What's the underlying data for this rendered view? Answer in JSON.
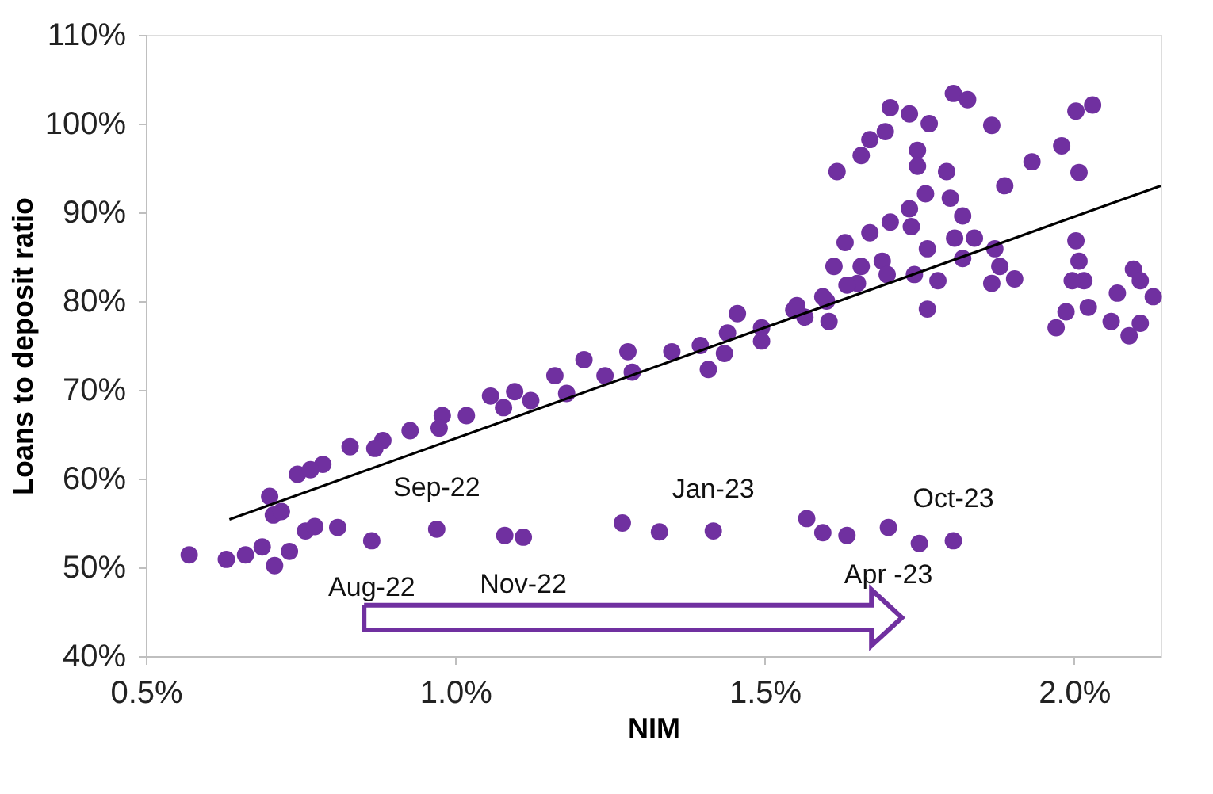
{
  "chart_data": {
    "type": "scatter",
    "xlabel": "NIM",
    "ylabel": "Loans to deposit ratio",
    "xlim": [
      0.5,
      2.14
    ],
    "ylim": [
      40,
      110
    ],
    "xticks": [
      {
        "value": 0.5,
        "label": "0.5%"
      },
      {
        "value": 1.0,
        "label": "1.0%"
      },
      {
        "value": 1.5,
        "label": "1.5%"
      },
      {
        "value": 2.0,
        "label": "2.0%"
      }
    ],
    "yticks": [
      {
        "value": 40,
        "label": "40%"
      },
      {
        "value": 50,
        "label": "50%"
      },
      {
        "value": 60,
        "label": "60%"
      },
      {
        "value": 70,
        "label": "70%"
      },
      {
        "value": 80,
        "label": "80%"
      },
      {
        "value": 90,
        "label": "90%"
      },
      {
        "value": 100,
        "label": "100%"
      },
      {
        "value": 110,
        "label": "110%"
      }
    ],
    "grid": false,
    "series": [
      {
        "marker": "circle",
        "color": "#7030a0",
        "x": [
          0.57,
          0.63,
          0.661,
          0.688,
          0.708,
          0.732,
          0.758,
          0.773,
          0.706,
          0.719,
          0.7,
          0.81,
          0.865,
          0.97,
          1.08,
          1.11,
          1.27,
          1.33,
          1.417,
          1.568,
          1.594,
          1.633,
          1.7,
          1.75,
          1.805,
          0.745,
          0.786,
          0.83,
          0.883,
          0.927,
          0.979,
          1.018,
          1.057,
          1.096,
          1.122,
          1.161,
          1.208,
          1.242,
          1.279,
          1.396,
          1.409,
          1.435,
          1.456,
          1.495,
          1.495,
          0.766,
          0.87,
          0.974,
          1.078,
          1.18,
          1.286,
          1.35,
          1.44,
          1.547,
          1.6,
          1.65,
          1.69,
          1.703,
          1.734,
          1.805,
          1.828,
          1.867,
          1.766,
          1.67,
          1.695,
          1.656,
          1.747,
          1.617,
          1.747,
          1.794,
          2.003,
          2.03,
          1.98,
          1.932,
          2.008,
          1.888,
          1.76,
          1.8,
          1.82,
          1.734,
          1.63,
          1.67,
          1.703,
          1.737,
          1.763,
          1.807,
          1.839,
          1.872,
          1.82,
          1.88,
          1.904,
          1.867,
          1.78,
          1.742,
          1.698,
          1.656,
          1.612,
          1.633,
          1.594,
          1.552,
          1.565,
          1.604,
          1.763,
          2.003,
          2.008,
          2.016,
          1.997,
          2.023,
          1.987,
          1.971,
          2.07,
          2.096,
          2.107,
          2.128,
          2.06,
          2.089,
          2.107
        ],
        "values": [
          51.4,
          50.9,
          51.4,
          52.3,
          50.2,
          51.8,
          54.1,
          54.6,
          55.9,
          56.3,
          58,
          54.5,
          53,
          54.3,
          53.6,
          53.4,
          55,
          54,
          54.1,
          55.5,
          53.9,
          53.6,
          54.5,
          52.7,
          53,
          60.5,
          61.6,
          63.6,
          64.3,
          65.4,
          67.1,
          67.1,
          69.3,
          69.8,
          68.8,
          71.6,
          73.4,
          71.6,
          74.3,
          75,
          72.3,
          74.1,
          78.6,
          77,
          75.5,
          61,
          63.4,
          65.7,
          68,
          69.6,
          72,
          74.3,
          76.4,
          79,
          80,
          82,
          84.5,
          101.8,
          101.1,
          103.4,
          102.7,
          99.8,
          100,
          98.2,
          99.1,
          96.4,
          97,
          94.6,
          95.2,
          94.6,
          101.4,
          102.1,
          97.5,
          95.7,
          94.5,
          93,
          92.1,
          91.6,
          89.6,
          90.4,
          86.6,
          87.7,
          88.9,
          88.4,
          85.9,
          87.1,
          87.1,
          85.9,
          84.8,
          83.9,
          82.5,
          82,
          82.3,
          83,
          83,
          83.9,
          83.9,
          81.8,
          80.5,
          79.5,
          78.2,
          77.7,
          79.1,
          86.8,
          84.5,
          82.3,
          82.3,
          79.3,
          78.8,
          77,
          80.9,
          83.6,
          82.3,
          80.5,
          77.7,
          76.1,
          77.5
        ]
      },
      {
        "type": "line",
        "color": "#000000",
        "x": [
          0.635,
          2.14
        ],
        "values": [
          55.4,
          93.0
        ]
      }
    ],
    "annotations": [
      {
        "text": "Aug-22",
        "x": 0.865,
        "y": 53
      },
      {
        "text": "Sep-22",
        "x": 0.97,
        "y": 54.3
      },
      {
        "text": "Nov-22",
        "x": 1.11,
        "y": 53.4
      },
      {
        "text": "Jan-23",
        "x": 1.417,
        "y": 54.1
      },
      {
        "text": "Apr -23",
        "x": 1.7,
        "y": 54.5
      },
      {
        "text": "Oct-23",
        "x": 1.805,
        "y": 53
      }
    ]
  }
}
